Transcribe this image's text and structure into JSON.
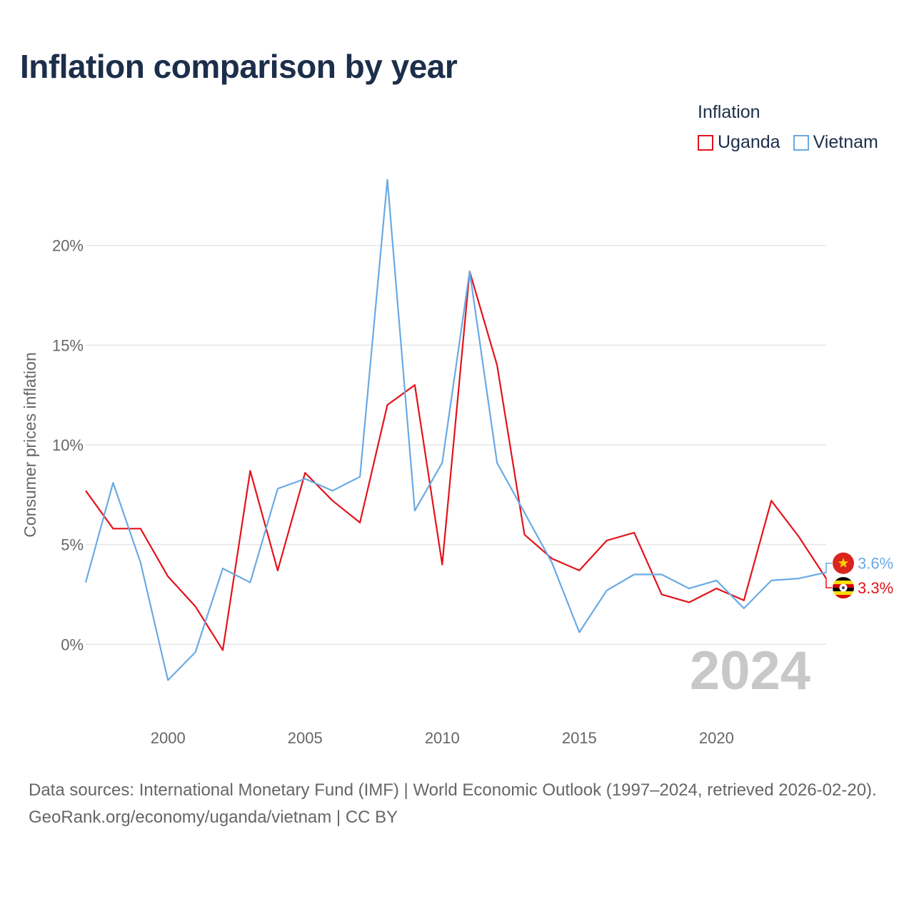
{
  "title": "Inflation comparison by year",
  "legend": {
    "title": "Inflation",
    "items": [
      {
        "name": "Uganda",
        "color": "#e3131b"
      },
      {
        "name": "Vietnam",
        "color": "#6aaae4"
      }
    ]
  },
  "year_watermark": "2024",
  "source": {
    "line1": "Data sources: International Monetary Fund (IMF) | World Economic Outlook (1997–2024, retrieved 2026-02-20).",
    "line2": "GeoRank.org/economy/uganda/vietnam | CC BY"
  },
  "chart_data": {
    "type": "line",
    "title": "Inflation comparison by year",
    "xlabel": "",
    "ylabel": "Consumer prices inflation",
    "x": [
      1997,
      1998,
      1999,
      2000,
      2001,
      2002,
      2003,
      2004,
      2005,
      2006,
      2007,
      2008,
      2009,
      2010,
      2011,
      2012,
      2013,
      2014,
      2015,
      2016,
      2017,
      2018,
      2019,
      2020,
      2021,
      2022,
      2023,
      2024
    ],
    "xlim": [
      1997,
      2024
    ],
    "ylim": [
      -3.5,
      23.5
    ],
    "xticks": [
      2000,
      2005,
      2010,
      2015,
      2020
    ],
    "yticks": [
      0,
      5,
      10,
      15,
      20
    ],
    "ytick_labels": [
      "0%",
      "5%",
      "10%",
      "15%",
      "20%"
    ],
    "xtick_labels": [
      "2000",
      "2005",
      "2010",
      "2015",
      "2020"
    ],
    "grid": true,
    "legend_position": "top-right",
    "series": [
      {
        "name": "Uganda",
        "color": "#e3131b",
        "end_label": "3.3%",
        "values": [
          7.7,
          5.8,
          5.8,
          3.4,
          1.9,
          -0.3,
          8.7,
          3.7,
          8.6,
          7.2,
          6.1,
          12.0,
          13.0,
          4.0,
          18.7,
          14.0,
          5.5,
          4.3,
          3.7,
          5.2,
          5.6,
          2.5,
          2.1,
          2.8,
          2.2,
          7.2,
          5.4,
          3.3
        ]
      },
      {
        "name": "Vietnam",
        "color": "#6aaae4",
        "end_label": "3.6%",
        "values": [
          3.1,
          8.1,
          4.1,
          -1.8,
          -0.4,
          3.8,
          3.1,
          7.8,
          8.3,
          7.7,
          8.4,
          23.3,
          6.7,
          9.1,
          18.7,
          9.1,
          6.6,
          4.1,
          0.6,
          2.7,
          3.5,
          3.5,
          2.8,
          3.2,
          1.8,
          3.2,
          3.3,
          3.6
        ]
      }
    ]
  }
}
